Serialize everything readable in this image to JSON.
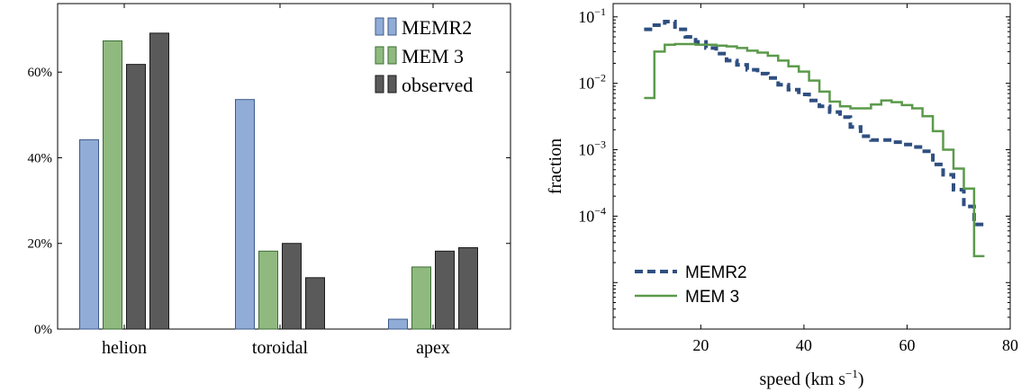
{
  "chart_data": [
    {
      "type": "bar",
      "categories": [
        "helion",
        "toroidal",
        "apex"
      ],
      "series": [
        {
          "name": "MEMR2",
          "values": [
            44.2,
            53.6,
            2.3
          ],
          "fill": "#91acd6",
          "stroke": "#3d5a8c"
        },
        {
          "name": "MEM 3",
          "values": [
            67.3,
            18.2,
            14.5
          ],
          "fill": "#8fb97f",
          "stroke": "#3b6e34"
        },
        {
          "name": "observed",
          "values": [
            61.8,
            20.0,
            18.2
          ],
          "fill": "#5a5a5a",
          "stroke": "#1a1a1a"
        },
        {
          "name": "",
          "values": [
            69.1,
            12.0,
            19.0
          ],
          "fill": "#5a5a5a",
          "stroke": "#1a1a1a"
        }
      ],
      "legend": [
        "MEMR2",
        "MEM 3",
        "observed"
      ],
      "ylim": [
        0,
        76
      ],
      "yticks": [
        0,
        20,
        40,
        60
      ],
      "ytick_labels": [
        "0%",
        "20%",
        "40%",
        "60%"
      ],
      "legend_position": "top-right"
    },
    {
      "type": "line",
      "xlabel": "speed (km s",
      "xlabel_superscript": "−1",
      "xlabel_close": ")",
      "ylabel": "fraction",
      "xlim": [
        3,
        80
      ],
      "ylim_log10": [
        -5.7,
        -0.8
      ],
      "log_y": true,
      "xticks": [
        20,
        40,
        60,
        80
      ],
      "ytick_exponents": [
        -4,
        -3,
        -2,
        -1
      ],
      "ytick_base": "10",
      "legend_position": "bottom-left",
      "series": [
        {
          "name": "MEMR2",
          "style": "dashed",
          "color": "#2f4f80",
          "x": [
            10,
            12,
            14,
            16,
            18,
            20,
            22,
            24,
            26,
            28,
            30,
            32,
            34,
            36,
            38,
            40,
            42,
            44,
            46,
            48,
            50,
            52,
            54,
            56,
            58,
            60,
            62,
            64,
            66,
            68,
            70,
            72,
            74
          ],
          "y": [
            0.065,
            0.075,
            0.085,
            0.065,
            0.05,
            0.042,
            0.034,
            0.028,
            0.022,
            0.019,
            0.016,
            0.014,
            0.012,
            0.0095,
            0.008,
            0.0068,
            0.0055,
            0.0045,
            0.0037,
            0.0031,
            0.0022,
            0.0016,
            0.0014,
            0.0014,
            0.0013,
            0.0012,
            0.0011,
            0.00095,
            0.0006,
            0.00042,
            0.00025,
            0.00014,
            7.5e-05
          ]
        },
        {
          "name": "MEM 3",
          "style": "solid",
          "color": "#5b9a4b",
          "x": [
            10,
            12,
            14,
            16,
            18,
            20,
            22,
            24,
            26,
            28,
            30,
            32,
            34,
            36,
            38,
            40,
            42,
            44,
            46,
            48,
            50,
            52,
            54,
            56,
            58,
            60,
            62,
            64,
            66,
            68,
            70,
            72,
            74
          ],
          "y": [
            0.006,
            0.03,
            0.038,
            0.039,
            0.039,
            0.038,
            0.038,
            0.037,
            0.036,
            0.034,
            0.031,
            0.029,
            0.026,
            0.022,
            0.018,
            0.015,
            0.011,
            0.0075,
            0.0053,
            0.0045,
            0.0042,
            0.0042,
            0.0048,
            0.0055,
            0.0052,
            0.0047,
            0.0042,
            0.0032,
            0.0019,
            0.001,
            0.00052,
            0.00026,
            2.5e-05
          ]
        }
      ]
    }
  ]
}
